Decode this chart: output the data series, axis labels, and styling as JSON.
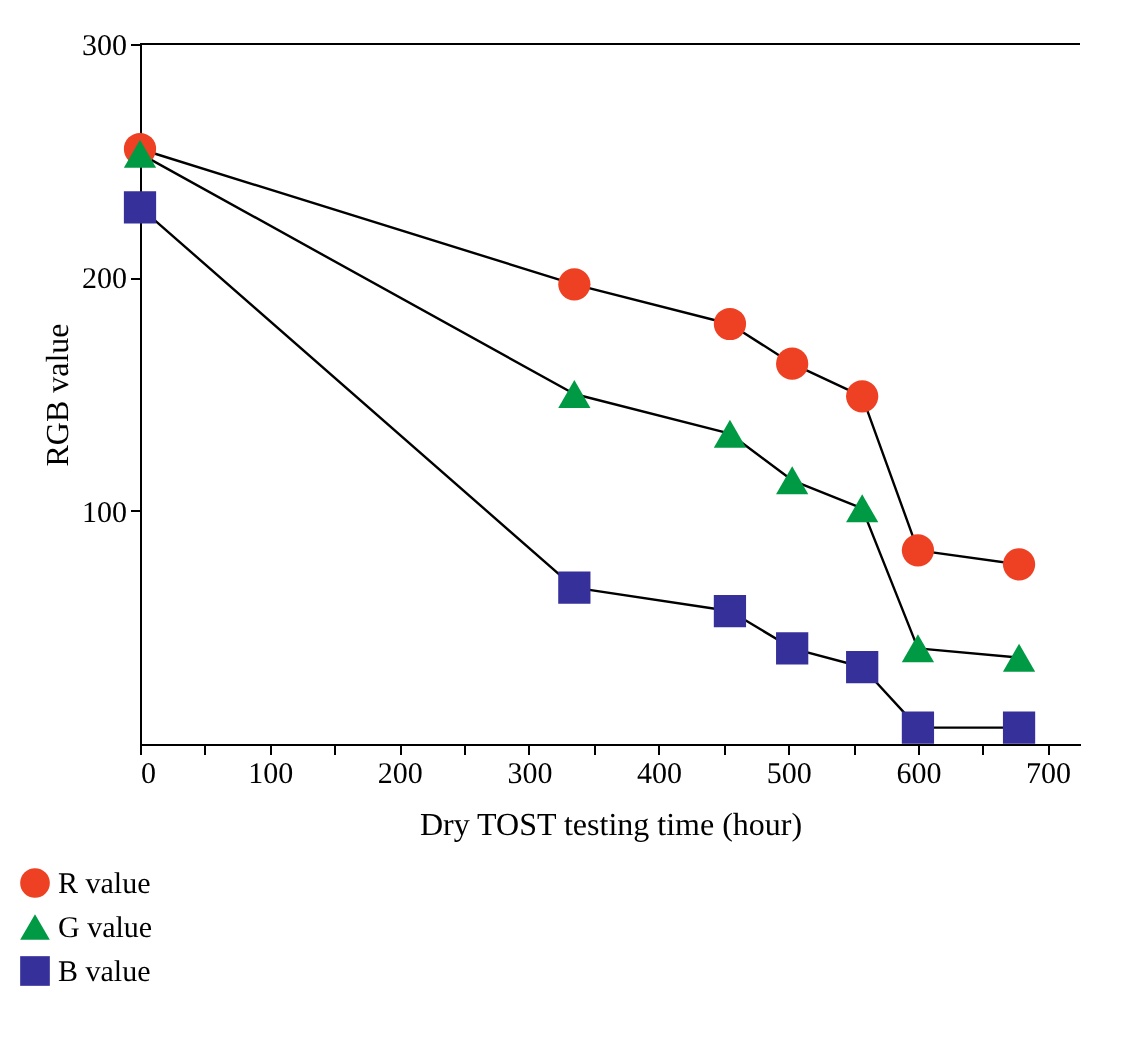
{
  "chart_data": {
    "type": "line",
    "xlabel": "Dry TOST testing time (hour)",
    "ylabel": "RGB value",
    "xlim": [
      0,
      725
    ],
    "ylim": [
      0,
      300
    ],
    "xticks": [
      0,
      {
        "value": 50,
        "label": null
      },
      100,
      {
        "value": 150,
        "label": null
      },
      200,
      {
        "value": 250,
        "label": null
      },
      300,
      {
        "value": 350,
        "label": null
      },
      400,
      {
        "value": 450,
        "label": null
      },
      500,
      {
        "value": 550,
        "label": null
      },
      600,
      {
        "value": 650,
        "label": null
      },
      700
    ],
    "yticks": [
      100,
      200,
      300
    ],
    "grid": false,
    "legend": "bottom left",
    "line_style": "solid",
    "x": [
      0,
      335,
      455,
      503,
      557,
      600,
      678
    ],
    "series": [
      {
        "name": "R value",
        "color": "#ee4022",
        "marker": "circle",
        "values": [
          255,
          197,
          180,
          163,
          149,
          83,
          77
        ]
      },
      {
        "name": "G value",
        "color": "#009a44",
        "marker": "triangle",
        "values": [
          253,
          150,
          133,
          113,
          101,
          41,
          37
        ]
      },
      {
        "name": "B value",
        "color": "#35309a",
        "marker": "square",
        "values": [
          230,
          67,
          57,
          41,
          33,
          7,
          7
        ]
      }
    ]
  }
}
